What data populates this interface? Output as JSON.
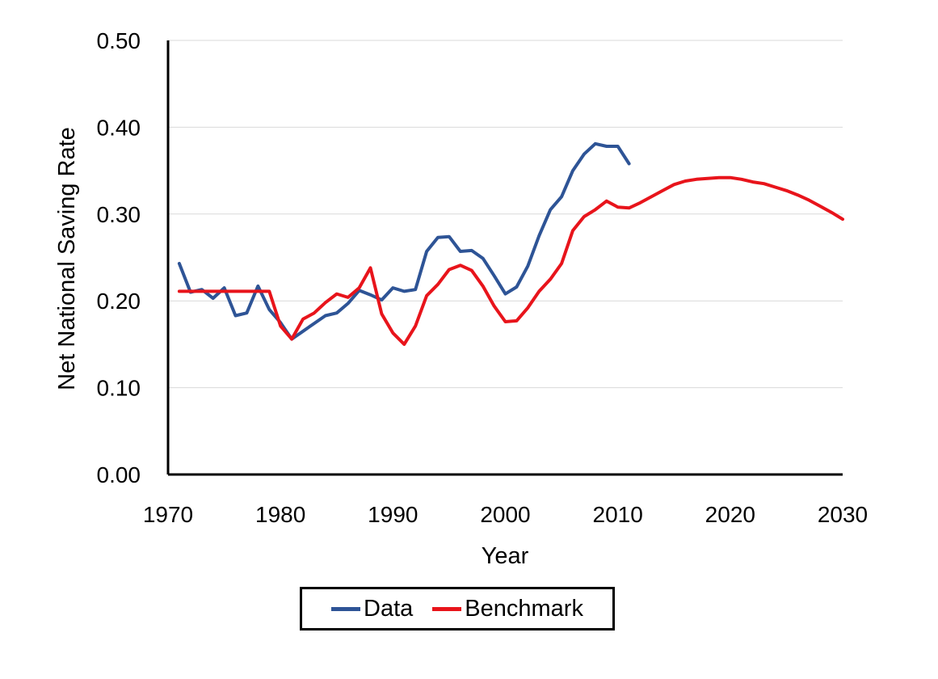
{
  "chart_data": {
    "type": "line",
    "title": "",
    "xlabel": "Year",
    "ylabel": "Net National Saving Rate",
    "xlim": [
      1970,
      2030
    ],
    "ylim": [
      0,
      0.5
    ],
    "xticks": [
      "1970",
      "1980",
      "1990",
      "2000",
      "2010",
      "2020",
      "2030"
    ],
    "yticks": [
      "0.00",
      "0.10",
      "0.20",
      "0.30",
      "0.40",
      "0.50"
    ],
    "grid": "horizontal",
    "legend_position": "bottom",
    "series": [
      {
        "name": "Data",
        "color": "#2E5496",
        "x": [
          1971,
          1972,
          1973,
          1974,
          1975,
          1976,
          1977,
          1978,
          1979,
          1980,
          1981,
          1982,
          1983,
          1984,
          1985,
          1986,
          1987,
          1988,
          1989,
          1990,
          1991,
          1992,
          1993,
          1994,
          1995,
          1996,
          1997,
          1998,
          1999,
          2000,
          2001,
          2002,
          2003,
          2004,
          2005,
          2006,
          2007,
          2008,
          2009,
          2010,
          2011
        ],
        "y": [
          0.243,
          0.21,
          0.213,
          0.203,
          0.215,
          0.183,
          0.186,
          0.217,
          0.19,
          0.175,
          0.156,
          0.165,
          0.174,
          0.183,
          0.186,
          0.197,
          0.212,
          0.207,
          0.201,
          0.215,
          0.211,
          0.213,
          0.257,
          0.273,
          0.274,
          0.257,
          0.258,
          0.249,
          0.229,
          0.208,
          0.216,
          0.24,
          0.275,
          0.305,
          0.32,
          0.35,
          0.369,
          0.381,
          0.378,
          0.378,
          0.358
        ]
      },
      {
        "name": "Benchmark",
        "color": "#E8141B",
        "x": [
          1971,
          1972,
          1973,
          1974,
          1975,
          1976,
          1977,
          1978,
          1979,
          1980,
          1981,
          1982,
          1983,
          1984,
          1985,
          1986,
          1987,
          1988,
          1989,
          1990,
          1991,
          1992,
          1993,
          1994,
          1995,
          1996,
          1997,
          1998,
          1999,
          2000,
          2001,
          2002,
          2003,
          2004,
          2005,
          2006,
          2007,
          2008,
          2009,
          2010,
          2011,
          2012,
          2013,
          2014,
          2015,
          2016,
          2017,
          2018,
          2019,
          2020,
          2021,
          2022,
          2023,
          2024,
          2025,
          2026,
          2027,
          2028,
          2029,
          2030
        ],
        "y": [
          0.211,
          0.211,
          0.211,
          0.211,
          0.211,
          0.211,
          0.211,
          0.211,
          0.211,
          0.171,
          0.156,
          0.179,
          0.186,
          0.198,
          0.208,
          0.204,
          0.215,
          0.238,
          0.185,
          0.163,
          0.15,
          0.171,
          0.206,
          0.219,
          0.236,
          0.241,
          0.235,
          0.217,
          0.194,
          0.176,
          0.177,
          0.192,
          0.211,
          0.225,
          0.243,
          0.281,
          0.297,
          0.305,
          0.315,
          0.308,
          0.307,
          0.313,
          0.32,
          0.327,
          0.334,
          0.338,
          0.34,
          0.341,
          0.342,
          0.342,
          0.34,
          0.337,
          0.335,
          0.331,
          0.327,
          0.322,
          0.316,
          0.309,
          0.302,
          0.294
        ]
      }
    ]
  }
}
